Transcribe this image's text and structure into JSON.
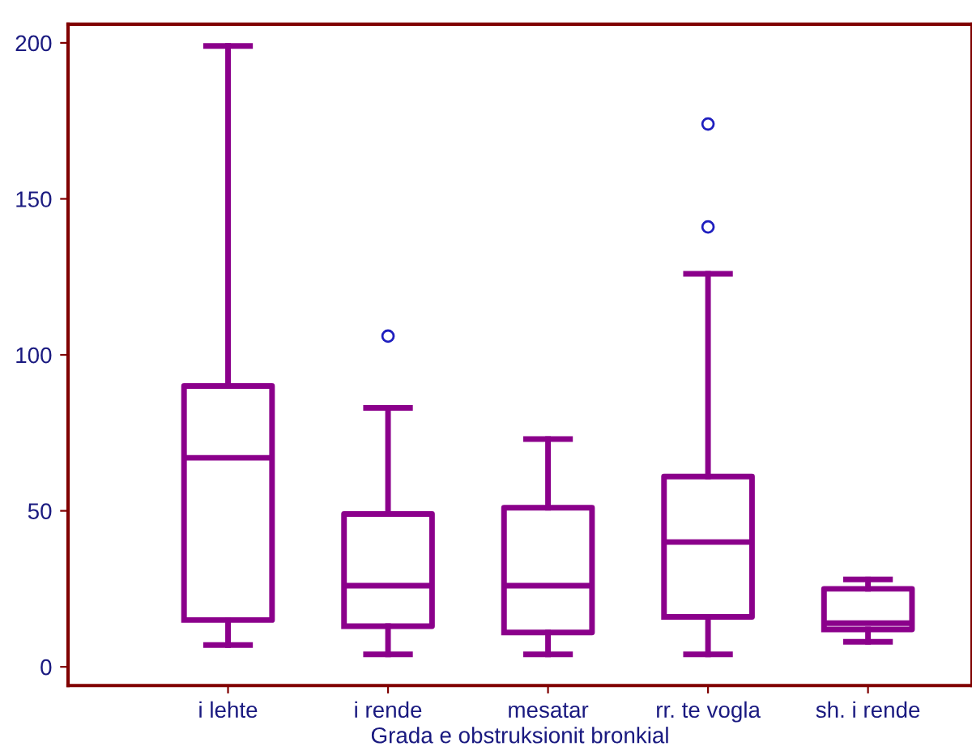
{
  "chart_data": {
    "type": "box",
    "xlabel": "Grada e obstruksionit bronkial",
    "categories": [
      "i lehte",
      "i rende",
      "mesatar",
      "rr. te vogla",
      "sh. i rende"
    ],
    "boxes": [
      {
        "low": 7,
        "q1": 15,
        "median": 67,
        "q3": 90,
        "high": 199
      },
      {
        "low": 4,
        "q1": 13,
        "median": 26,
        "q3": 49,
        "high": 83,
        "outliers": [
          106
        ]
      },
      {
        "low": 4,
        "q1": 11,
        "median": 26,
        "q3": 51,
        "high": 73
      },
      {
        "low": 4,
        "q1": 16,
        "median": 40,
        "q3": 61,
        "high": 126,
        "outliers": [
          141,
          174
        ]
      },
      {
        "low": 8,
        "q1": 12,
        "median": 14,
        "q3": 25,
        "high": 28
      }
    ],
    "color": "#8b008b",
    "ylim": [
      -6,
      206
    ],
    "yticks": [
      0,
      50,
      100,
      150,
      200
    ],
    "grid": false
  }
}
